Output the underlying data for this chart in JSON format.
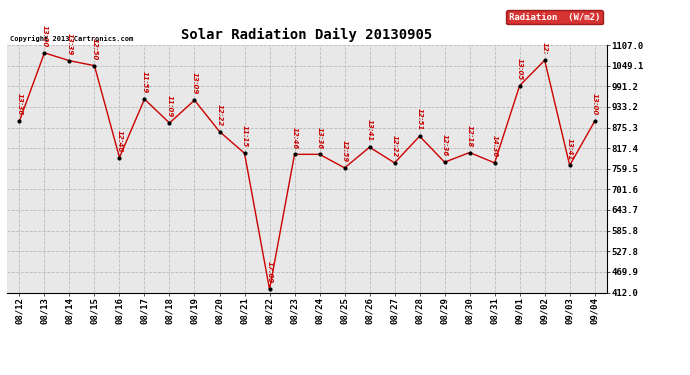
{
  "title": "Solar Radiation Daily 20130905",
  "copyright": "Copyright 2013 Cartronics.com",
  "legend_label": "Radiation  (W/m2)",
  "dates": [
    "08/12",
    "08/13",
    "08/14",
    "08/15",
    "08/16",
    "08/17",
    "08/18",
    "08/19",
    "08/20",
    "08/21",
    "08/22",
    "08/23",
    "08/24",
    "08/25",
    "08/26",
    "08/27",
    "08/28",
    "08/29",
    "08/30",
    "08/31",
    "09/01",
    "09/02",
    "09/03",
    "09/04"
  ],
  "values": [
    893.0,
    1085.0,
    1063.0,
    1049.0,
    791.0,
    955.0,
    888.0,
    952.0,
    864.0,
    803.0,
    421.0,
    800.0,
    800.0,
    762.0,
    820.0,
    776.0,
    851.0,
    778.0,
    805.0,
    776.0,
    993.0,
    1064.0,
    769.0,
    893.0
  ],
  "time_labels": [
    "13:36",
    "13:00",
    "13:39",
    "12:50",
    "12:46",
    "11:59",
    "11:09",
    "13:09",
    "12:22",
    "11:15",
    "17:09",
    "12:46",
    "13:36",
    "12:59",
    "13:41",
    "12:22",
    "12:51",
    "12:36",
    "12:18",
    "14:30",
    "13:05",
    "12:",
    "13:41",
    "13:00"
  ],
  "ymin": 412.0,
  "ymax": 1107.0,
  "yticks": [
    412.0,
    469.9,
    527.8,
    585.8,
    643.7,
    701.6,
    759.5,
    817.4,
    875.3,
    933.2,
    991.2,
    1049.1,
    1107.0
  ],
  "line_color": "#cc0000",
  "marker_color": "#000000",
  "bg_color": "#ffffff",
  "plot_bg_color": "#e8e8e8",
  "grid_color": "#bbbbbb",
  "label_color": "#cc0000",
  "legend_bg": "#cc0000",
  "legend_text_color": "#ffffff"
}
